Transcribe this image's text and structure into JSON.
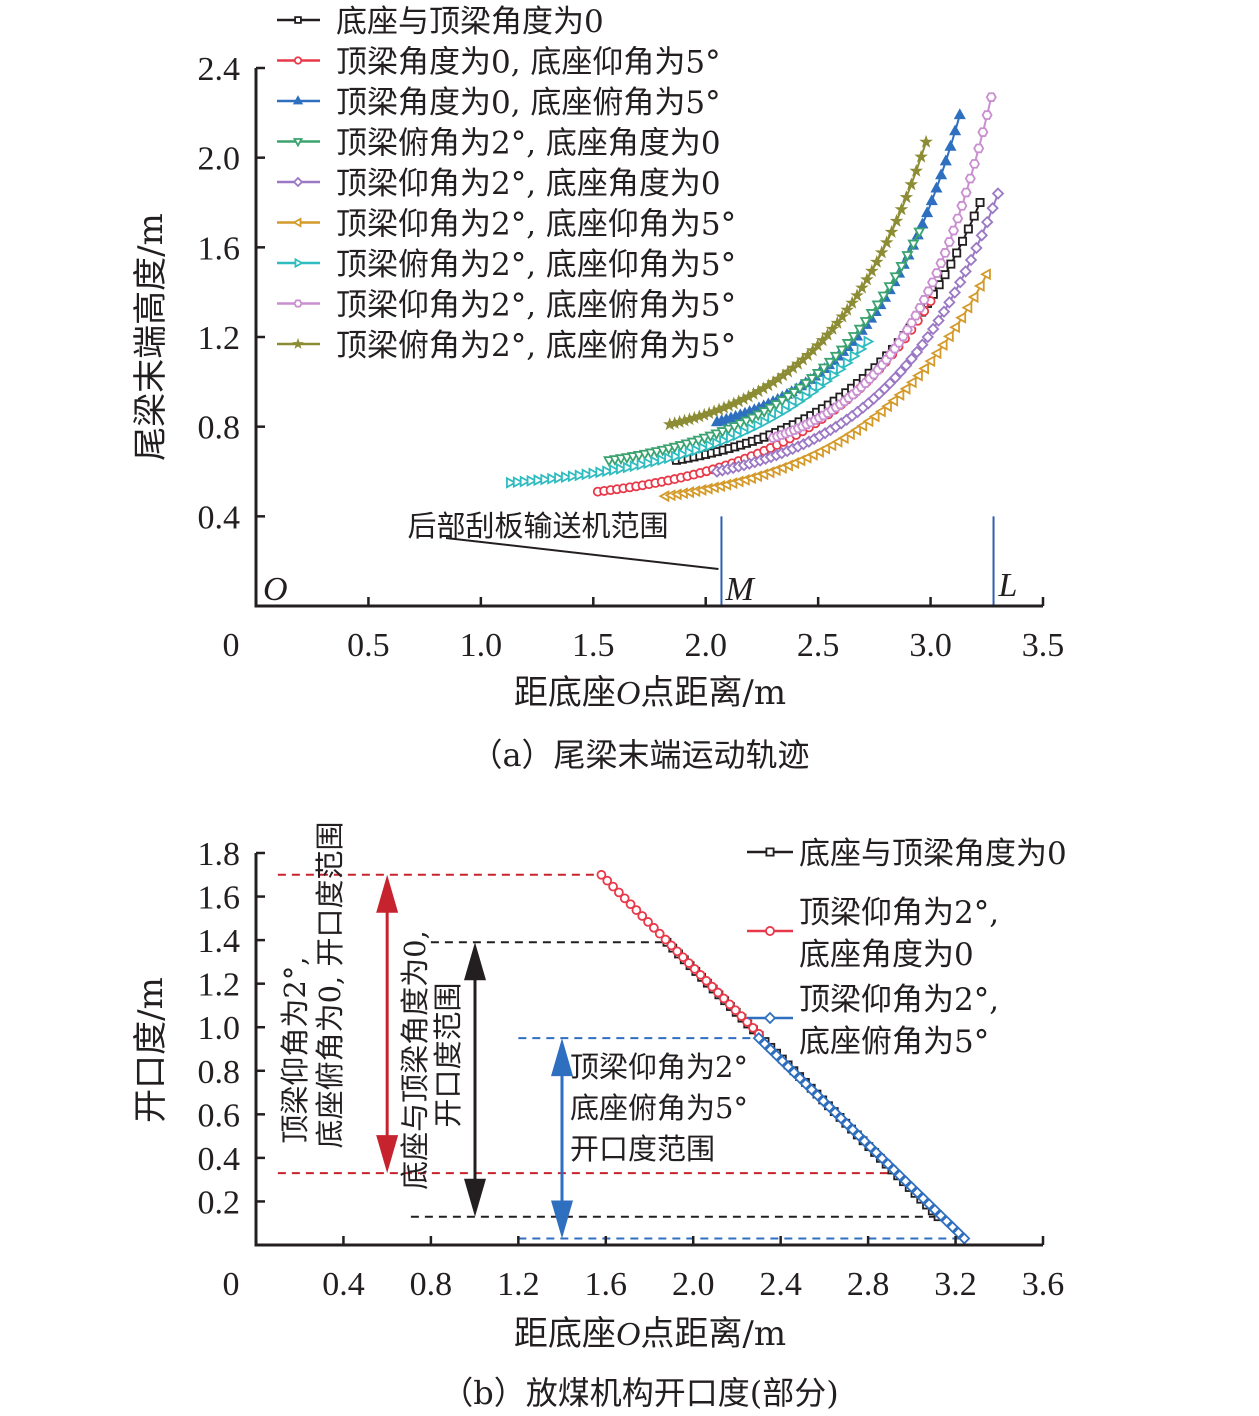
{
  "chart_data": [
    {
      "id": "a",
      "type": "scatter",
      "caption": "（a）尾梁末端运动轨迹",
      "xlabel_parts": [
        "距底座",
        "O",
        "点距离/m"
      ],
      "ylabel": "尾梁末端高度/m",
      "xlim": [
        0,
        3.5
      ],
      "ylim": [
        0,
        2.4
      ],
      "xticks": [
        "0",
        "0.5",
        "1.0",
        "1.5",
        "2.0",
        "2.5",
        "3.0",
        "3.5"
      ],
      "xtick_values": [
        0,
        0.5,
        1.0,
        1.5,
        2.0,
        2.5,
        3.0,
        3.5
      ],
      "yticks": [
        "0.4",
        "0.8",
        "1.2",
        "1.6",
        "2.0",
        "2.4"
      ],
      "ytick_values": [
        0.4,
        0.8,
        1.2,
        1.6,
        2.0,
        2.4
      ],
      "origin_label": "0",
      "grid": false,
      "legend_position": "top-left",
      "series": [
        {
          "name": "底座与顶梁角度为0",
          "color": "#231f20",
          "marker": "square",
          "x_start": 1.87,
          "y_start": 0.65,
          "x_end": 3.22,
          "y_end": 1.8
        },
        {
          "name": "顶梁角度为0, 底座仰角为5°",
          "color": "#e8394a",
          "marker": "circle",
          "x_start": 1.52,
          "y_start": 0.51,
          "x_end": 3.0,
          "y_end": 1.36
        },
        {
          "name": "顶梁角度为0, 底座俯角为5°",
          "color": "#2f6fc0",
          "marker": "triangle-up",
          "x_start": 2.05,
          "y_start": 0.82,
          "x_end": 3.13,
          "y_end": 2.19
        },
        {
          "name": "顶梁俯角为2°, 底座角度为0",
          "color": "#3aa36f",
          "marker": "triangle-down",
          "x_start": 1.57,
          "y_start": 0.65,
          "x_end": 2.95,
          "y_end": 1.67
        },
        {
          "name": "顶梁仰角为2°, 底座角度为0",
          "color": "#9b78c4",
          "marker": "diamond",
          "x_start": 2.05,
          "y_start": 0.6,
          "x_end": 3.3,
          "y_end": 1.84
        },
        {
          "name": "顶梁仰角为2°, 底座仰角为5°",
          "color": "#d49a2a",
          "marker": "triangle-left",
          "x_start": 1.82,
          "y_start": 0.49,
          "x_end": 3.25,
          "y_end": 1.48
        },
        {
          "name": "顶梁俯角为2°, 底座仰角为5°",
          "color": "#2fbcc0",
          "marker": "triangle-right",
          "x_start": 1.13,
          "y_start": 0.55,
          "x_end": 2.72,
          "y_end": 1.18
        },
        {
          "name": "顶梁仰角为2°, 底座俯角为5°",
          "color": "#c98fd0",
          "marker": "hexagon",
          "x_start": 2.3,
          "y_start": 0.75,
          "x_end": 3.27,
          "y_end": 2.27
        },
        {
          "name": "顶梁俯角为2°, 底座俯角为5°",
          "color": "#8c8c35",
          "marker": "star",
          "x_start": 1.84,
          "y_start": 0.81,
          "x_end": 2.98,
          "y_end": 2.07
        }
      ],
      "annotations": {
        "conveyor_label": "后部刮板输送机范围",
        "conveyor_color": "#2f5fb0",
        "conveyor_x_range": [
          2.07,
          3.28
        ],
        "conveyor_height": 0.4,
        "point_O": "O",
        "point_M": "M",
        "point_L": "L"
      }
    },
    {
      "id": "b",
      "type": "line",
      "caption": "（b）放煤机构开口度(部分)",
      "xlabel_parts": [
        "距底座",
        "O",
        "点距离/m"
      ],
      "ylabel": "开口度/m",
      "xlim": [
        0,
        3.6
      ],
      "ylim": [
        0,
        1.8
      ],
      "xticks": [
        "0",
        "0.4",
        "0.8",
        "1.2",
        "1.6",
        "2.0",
        "2.4",
        "2.8",
        "3.2",
        "3.6"
      ],
      "xtick_values": [
        0,
        0.4,
        0.8,
        1.2,
        1.6,
        2.0,
        2.4,
        2.8,
        3.2,
        3.6
      ],
      "yticks": [
        "0.2",
        "0.4",
        "0.6",
        "0.8",
        "1.0",
        "1.2",
        "1.4",
        "1.6",
        "1.8"
      ],
      "ytick_values": [
        0.2,
        0.4,
        0.6,
        0.8,
        1.0,
        1.2,
        1.4,
        1.6,
        1.8
      ],
      "origin_label": "0",
      "grid": false,
      "legend_position": "top-right",
      "series": [
        {
          "name": "底座与顶梁角度为0",
          "color": "#231f20",
          "marker": "square",
          "x": [
            1.88,
            3.12
          ],
          "y": [
            1.39,
            0.13
          ]
        },
        {
          "name_lines": [
            "顶梁仰角为2°,",
            "底座角度为0"
          ],
          "color": "#e8394a",
          "marker": "circle",
          "x": [
            1.58,
            2.3
          ],
          "y": [
            1.7,
            0.97
          ]
        },
        {
          "name_lines": [
            "顶梁仰角为2°,",
            "底座俯角为5°"
          ],
          "color": "#2f6fc0",
          "marker": "diamond",
          "x": [
            2.3,
            3.24
          ],
          "y": [
            0.95,
            0.03
          ]
        }
      ],
      "range_markers": [
        {
          "color": "#c7232e",
          "top": 1.7,
          "bottom": 0.33,
          "arrow_x": 0.6,
          "dash_x_start": 0.1,
          "dash_top_x_end": 1.58,
          "dash_bottom_x_end": 2.9,
          "label_lines": [
            "顶梁仰角为2°,",
            "底座俯角为0, 开口度范围"
          ]
        },
        {
          "color": "#231f20",
          "top": 1.39,
          "bottom": 0.13,
          "arrow_x": 1.0,
          "dash_top_x_start": 0.8,
          "dash_top_x_end": 1.88,
          "dash_bottom_x_start": 0.8,
          "dash_bottom_x_end": 3.12,
          "label_lines": [
            "底座与顶梁角度为0,",
            "开口度范围"
          ]
        },
        {
          "color": "#2f6fc0",
          "top": 0.95,
          "bottom": 0.03,
          "arrow_x": 1.4,
          "dash_x_start": 1.2,
          "dash_top_x_end": 2.3,
          "dash_bottom_x_end": 3.24,
          "label_lines": [
            "顶梁仰角为2°",
            "底座俯角为5°",
            "开口度范围"
          ]
        }
      ]
    }
  ]
}
